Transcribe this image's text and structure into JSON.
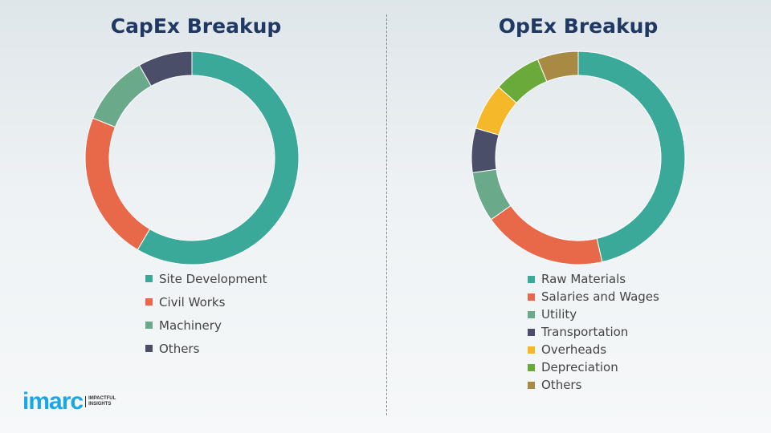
{
  "chart_data": [
    {
      "type": "pie",
      "donut": true,
      "title": "CapEx Breakup",
      "legend_position": "bottom",
      "categories": [
        "Site Development",
        "Civil Works",
        "Machinery",
        "Others"
      ],
      "values": [
        58.5,
        22.6,
        10.7,
        8.2
      ],
      "colors": [
        "#3aa99a",
        "#e8694a",
        "#6aaa8a",
        "#4a4e69"
      ]
    },
    {
      "type": "pie",
      "donut": true,
      "title": "OpEx Breakup",
      "legend_position": "bottom",
      "categories": [
        "Raw Materials",
        "Salaries and Wages",
        "Utility",
        "Transportation",
        "Overheads",
        "Depreciation",
        "Others"
      ],
      "values": [
        46.4,
        18.8,
        7.6,
        6.7,
        7.1,
        7.2,
        6.2
      ],
      "colors": [
        "#3aa99a",
        "#e8694a",
        "#6aaa8a",
        "#4a4e69",
        "#f5b82a",
        "#6aaa3a",
        "#a88a45"
      ]
    }
  ],
  "logo": {
    "word": "imarc",
    "tag1": "IMPACTFUL",
    "tag2": "INSIGHTS"
  }
}
